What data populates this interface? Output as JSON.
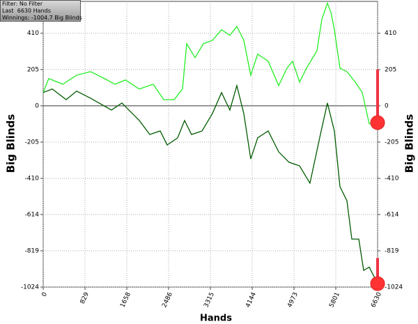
{
  "info": {
    "filter": "Filter: No Filter",
    "hands": "Last  6630 Hands",
    "winnings": "Winnings: -1004.7 Big Blinds"
  },
  "chart_data": {
    "type": "line",
    "xlabel": "Hands",
    "ylabel": "Big Blinds",
    "xlim": [
      0,
      6630
    ],
    "xticks": [
      0,
      829,
      1658,
      2486,
      3315,
      4144,
      4973,
      5801,
      6630
    ],
    "ylim": [
      -1024,
      590
    ],
    "yticks": [
      410,
      205,
      0,
      -205,
      -410,
      -614,
      -819,
      -1024
    ],
    "grid": true,
    "series": [
      {
        "color": "#22ee22",
        "x": [
          0,
          110,
          387,
          663,
          939,
          1215,
          1422,
          1630,
          1906,
          2182,
          2389,
          2596,
          2762,
          2845,
          3011,
          3176,
          3356,
          3536,
          3701,
          3839,
          3977,
          4115,
          4253,
          4461,
          4668,
          4834,
          4945,
          5083,
          5221,
          5428,
          5525,
          5635,
          5704,
          5773,
          5884,
          6022,
          6188,
          6326,
          6464,
          6630
        ],
        "values": [
          75,
          154,
          122,
          173,
          193,
          154,
          122,
          146,
          95,
          122,
          35,
          35,
          95,
          351,
          272,
          351,
          370,
          430,
          398,
          449,
          370,
          173,
          292,
          252,
          114,
          213,
          252,
          134,
          213,
          311,
          489,
          580,
          528,
          430,
          213,
          193,
          134,
          75,
          -102,
          -95
        ],
        "end_range": [
          -95,
          205
        ]
      },
      {
        "color": "#005a00",
        "x": [
          0,
          180,
          456,
          663,
          939,
          1353,
          1561,
          1699,
          1906,
          2113,
          2320,
          2458,
          2665,
          2803,
          2941,
          3149,
          3356,
          3536,
          3701,
          3839,
          3977,
          4115,
          4253,
          4461,
          4668,
          4875,
          5082,
          5289,
          5496,
          5635,
          5773,
          5884,
          6022,
          6119,
          6257,
          6354,
          6464,
          6630
        ],
        "values": [
          75,
          95,
          35,
          83,
          43,
          -24,
          16,
          -24,
          -83,
          -162,
          -142,
          -221,
          -181,
          -83,
          -162,
          -142,
          -43,
          75,
          -24,
          114,
          -43,
          -300,
          -181,
          -142,
          -260,
          -319,
          -339,
          -437,
          -162,
          16,
          -142,
          -457,
          -536,
          -753,
          -753,
          -930,
          -911,
          -1004.7
        ],
        "end_range": [
          -1024,
          -860
        ]
      }
    ]
  }
}
